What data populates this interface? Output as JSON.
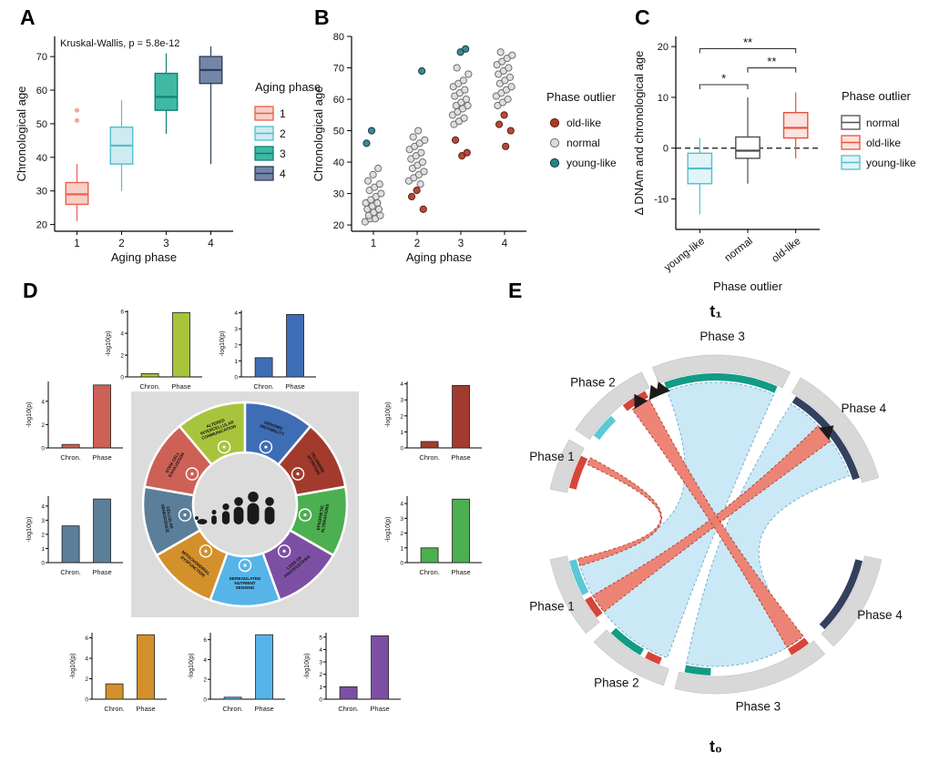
{
  "panels": {
    "A": "A",
    "B": "B",
    "C": "C",
    "D": "D",
    "E": "E"
  },
  "chart_data": [
    {
      "id": "chartA",
      "type": "box",
      "title": "Kruskal-Wallis, p = 5.8e-12",
      "xlabel": "Aging phase",
      "ylabel": "Chronological age",
      "ylim": [
        18,
        76
      ],
      "yticks": [
        20,
        30,
        40,
        50,
        60,
        70
      ],
      "legend": {
        "title": "Aging phase",
        "entries": [
          {
            "label": "1",
            "stroke": "#E8604C",
            "fill": "#F9CEC6"
          },
          {
            "label": "2",
            "stroke": "#52BECC",
            "fill": "#CDEBF0"
          },
          {
            "label": "3",
            "stroke": "#0F8174",
            "fill": "#3FB8A4"
          },
          {
            "label": "4",
            "stroke": "#2F3E5C",
            "fill": "#7486A8"
          }
        ]
      },
      "boxes": [
        {
          "label": "1",
          "stroke": "#E8604C",
          "fill": "#F9CEC6",
          "low": 21,
          "q1": 26,
          "median": 29,
          "q3": 32.5,
          "high": 38,
          "outliers": [
            51,
            54
          ]
        },
        {
          "label": "2",
          "stroke": "#52BECC",
          "fill": "#CDEBF0",
          "low": 30,
          "q1": 38,
          "median": 43.5,
          "q3": 49,
          "high": 57,
          "outliers": []
        },
        {
          "label": "3",
          "stroke": "#0F8174",
          "fill": "#3FB8A4",
          "low": 47,
          "q1": 54,
          "median": 58,
          "q3": 65,
          "high": 71,
          "outliers": []
        },
        {
          "label": "4",
          "stroke": "#2F3E5C",
          "fill": "#7486A8",
          "low": 38,
          "q1": 62,
          "median": 66,
          "q3": 70,
          "high": 73,
          "outliers": []
        }
      ]
    },
    {
      "id": "chartB",
      "type": "scatter",
      "xlabel": "Aging phase",
      "ylabel": "Chronological age",
      "ylim": [
        18,
        80
      ],
      "yticks": [
        20,
        30,
        40,
        50,
        60,
        70,
        80
      ],
      "categories": [
        "1",
        "2",
        "3",
        "4"
      ],
      "classes": {
        "old-like": {
          "fill": "#AE3B2A",
          "stroke": "#5F1F14"
        },
        "normal": {
          "fill": "#DCDCDC",
          "stroke": "#6E6E6E"
        },
        "young-like": {
          "fill": "#2B7F8C",
          "stroke": "#123F47"
        }
      },
      "legend": {
        "title": "Phase outlier",
        "entries": [
          "old-like",
          "normal",
          "young-like"
        ]
      },
      "points": [
        [
          1,
          21,
          "normal"
        ],
        [
          1,
          22,
          "normal"
        ],
        [
          1,
          22,
          "normal"
        ],
        [
          1,
          23,
          "normal"
        ],
        [
          1,
          23,
          "normal"
        ],
        [
          1,
          24,
          "normal"
        ],
        [
          1,
          25,
          "normal"
        ],
        [
          1,
          25,
          "normal"
        ],
        [
          1,
          26,
          "normal"
        ],
        [
          1,
          27,
          "normal"
        ],
        [
          1,
          27,
          "normal"
        ],
        [
          1,
          28,
          "normal"
        ],
        [
          1,
          29,
          "normal"
        ],
        [
          1,
          30,
          "normal"
        ],
        [
          1,
          31,
          "normal"
        ],
        [
          1,
          32,
          "normal"
        ],
        [
          1,
          33,
          "normal"
        ],
        [
          1,
          34,
          "normal"
        ],
        [
          1,
          36,
          "normal"
        ],
        [
          1,
          38,
          "normal"
        ],
        [
          1,
          46,
          "young-like"
        ],
        [
          1,
          50,
          "young-like"
        ],
        [
          2,
          33,
          "normal"
        ],
        [
          2,
          34,
          "normal"
        ],
        [
          2,
          35,
          "normal"
        ],
        [
          2,
          36,
          "normal"
        ],
        [
          2,
          37,
          "normal"
        ],
        [
          2,
          38,
          "normal"
        ],
        [
          2,
          39,
          "normal"
        ],
        [
          2,
          40,
          "normal"
        ],
        [
          2,
          41,
          "normal"
        ],
        [
          2,
          42,
          "normal"
        ],
        [
          2,
          43,
          "normal"
        ],
        [
          2,
          44,
          "normal"
        ],
        [
          2,
          45,
          "normal"
        ],
        [
          2,
          46,
          "normal"
        ],
        [
          2,
          47,
          "normal"
        ],
        [
          2,
          48,
          "normal"
        ],
        [
          2,
          50,
          "normal"
        ],
        [
          2,
          25,
          "old-like"
        ],
        [
          2,
          29,
          "old-like"
        ],
        [
          2,
          31,
          "old-like"
        ],
        [
          2,
          69,
          "young-like"
        ],
        [
          3,
          52,
          "normal"
        ],
        [
          3,
          53,
          "normal"
        ],
        [
          3,
          54,
          "normal"
        ],
        [
          3,
          55,
          "normal"
        ],
        [
          3,
          56,
          "normal"
        ],
        [
          3,
          57,
          "normal"
        ],
        [
          3,
          58,
          "normal"
        ],
        [
          3,
          58,
          "normal"
        ],
        [
          3,
          59,
          "normal"
        ],
        [
          3,
          60,
          "normal"
        ],
        [
          3,
          61,
          "normal"
        ],
        [
          3,
          62,
          "normal"
        ],
        [
          3,
          63,
          "normal"
        ],
        [
          3,
          64,
          "normal"
        ],
        [
          3,
          65,
          "normal"
        ],
        [
          3,
          66,
          "normal"
        ],
        [
          3,
          68,
          "normal"
        ],
        [
          3,
          70,
          "normal"
        ],
        [
          3,
          42,
          "old-like"
        ],
        [
          3,
          43,
          "old-like"
        ],
        [
          3,
          47,
          "old-like"
        ],
        [
          3,
          75,
          "young-like"
        ],
        [
          3,
          76,
          "young-like"
        ],
        [
          4,
          58,
          "normal"
        ],
        [
          4,
          59,
          "normal"
        ],
        [
          4,
          60,
          "normal"
        ],
        [
          4,
          61,
          "normal"
        ],
        [
          4,
          62,
          "normal"
        ],
        [
          4,
          63,
          "normal"
        ],
        [
          4,
          64,
          "normal"
        ],
        [
          4,
          65,
          "normal"
        ],
        [
          4,
          66,
          "normal"
        ],
        [
          4,
          67,
          "normal"
        ],
        [
          4,
          68,
          "normal"
        ],
        [
          4,
          69,
          "normal"
        ],
        [
          4,
          70,
          "normal"
        ],
        [
          4,
          71,
          "normal"
        ],
        [
          4,
          72,
          "normal"
        ],
        [
          4,
          73,
          "normal"
        ],
        [
          4,
          74,
          "normal"
        ],
        [
          4,
          75,
          "normal"
        ],
        [
          4,
          45,
          "old-like"
        ],
        [
          4,
          50,
          "old-like"
        ],
        [
          4,
          52,
          "old-like"
        ],
        [
          4,
          55,
          "old-like"
        ]
      ]
    },
    {
      "id": "chartC",
      "type": "box",
      "ml": 50,
      "xlabel": "Phase outlier",
      "ylabel": "Δ DNAm and chronological age",
      "ylim": [
        -16,
        22
      ],
      "yticks": [
        -10,
        0,
        10,
        20
      ],
      "zero_line": true,
      "rotate_x": true,
      "legend": {
        "title": "Phase outlier",
        "entries": [
          {
            "label": "normal",
            "stroke": "#4D4D4D",
            "fill": "#FFFFFF"
          },
          {
            "label": "old-like",
            "stroke": "#E8503A",
            "fill": "#FBE3DF"
          },
          {
            "label": "young-like",
            "stroke": "#52BECC",
            "fill": "#E2F4F7"
          }
        ]
      },
      "boxes": [
        {
          "label": "young-like",
          "stroke": "#52BECC",
          "fill": "#E2F4F7",
          "low": -13,
          "q1": -7,
          "median": -4,
          "q3": -1,
          "high": 2,
          "outliers": []
        },
        {
          "label": "normal",
          "stroke": "#4D4D4D",
          "fill": "#FFFFFF",
          "low": -7,
          "q1": -2,
          "median": -0.5,
          "q3": 2.2,
          "high": 10,
          "outliers": []
        },
        {
          "label": "old-like",
          "stroke": "#E8503A",
          "fill": "#FBE3DF",
          "low": -2,
          "q1": 2,
          "median": 4,
          "q3": 7,
          "high": 11,
          "outliers": []
        }
      ],
      "brackets": [
        {
          "from": 0,
          "to": 1,
          "label": "*",
          "y": 12.5
        },
        {
          "from": 1,
          "to": 2,
          "label": "**",
          "y": 15.8
        },
        {
          "from": 0,
          "to": 2,
          "label": "**",
          "y": 19.6
        }
      ]
    },
    {
      "id": "panelD",
      "type": "bar-multiples",
      "ylabel": "-log10(p)",
      "categories": [
        "Chron.",
        "Phase"
      ],
      "charts": [
        {
          "slot": "d-top-left",
          "hallmark": "Altered intercellular communication",
          "color": "#A8C43C",
          "values": [
            0.3,
            5.9
          ],
          "ymax": 6.1,
          "yticks": [
            0,
            2,
            4,
            6
          ]
        },
        {
          "slot": "d-top-right",
          "hallmark": "Genomic instability",
          "color": "#3E6DB5",
          "values": [
            1.2,
            3.9
          ],
          "ymax": 4.15,
          "yticks": [
            0,
            1,
            2,
            3,
            4
          ]
        },
        {
          "slot": "d-right-top",
          "hallmark": "Telomere attrition",
          "color": "#A23B2E",
          "values": [
            0.4,
            3.9
          ],
          "ymax": 4.15,
          "yticks": [
            0,
            1,
            2,
            3,
            4
          ]
        },
        {
          "slot": "d-right-bottom",
          "hallmark": "Epigenetic alterations",
          "color": "#4CAF50",
          "values": [
            1.0,
            4.3
          ],
          "ymax": 4.5,
          "yticks": [
            0,
            1,
            2,
            3,
            4
          ]
        },
        {
          "slot": "d-left-top",
          "hallmark": "Stem cell exhaustion",
          "color": "#CD6155",
          "values": [
            0.3,
            5.4
          ],
          "ymax": 5.7,
          "yticks": [
            0,
            2,
            4
          ]
        },
        {
          "slot": "d-left-bottom",
          "hallmark": "Cellular senescence",
          "color": "#5B7E99",
          "values": [
            2.6,
            4.5
          ],
          "ymax": 4.7,
          "yticks": [
            0,
            1,
            2,
            3,
            4
          ]
        },
        {
          "slot": "d-bottom-left",
          "hallmark": "Mitochondrial dysfunction",
          "color": "#D4902A",
          "values": [
            1.5,
            6.3
          ],
          "ymax": 6.5,
          "yticks": [
            0,
            2,
            4,
            6
          ]
        },
        {
          "slot": "d-bottom-middle",
          "hallmark": "Deregulated nutrient sensing",
          "color": "#56B4E9",
          "values": [
            0.2,
            6.5
          ],
          "ymax": 6.7,
          "yticks": [
            0,
            2,
            4,
            6
          ]
        },
        {
          "slot": "d-bottom-right",
          "hallmark": "Loss of proteostasis",
          "color": "#7D4FA3",
          "values": [
            1.0,
            5.1
          ],
          "ymax": 5.35,
          "yticks": [
            0,
            1,
            2,
            3,
            4,
            5
          ]
        }
      ],
      "wheel": {
        "segments": [
          {
            "label": "Altered intercellular communication",
            "color": "#A8C43C"
          },
          {
            "label": "Genomic instability",
            "color": "#3E6DB5"
          },
          {
            "label": "Telomere attrition",
            "color": "#A23B2E"
          },
          {
            "label": "Epigenetic alterations",
            "color": "#4CAF50"
          },
          {
            "label": "Loss of proteostasis",
            "color": "#7D4FA3"
          },
          {
            "label": "Deregulated nutrient sensing",
            "color": "#56B4E9"
          },
          {
            "label": "Mitochondrial dysfunction",
            "color": "#D4902A"
          },
          {
            "label": "Cellular senescence",
            "color": "#5B7E99"
          },
          {
            "label": "Stem cell exhaustion",
            "color": "#CD6155"
          }
        ]
      }
    },
    {
      "id": "chartE",
      "type": "chord",
      "top_label": "t₁",
      "bottom_label": "t₀",
      "colors": {
        "grey": "#D8D8D8",
        "cyan": "#5BC8D6",
        "teal": "#129B85",
        "red": "#D6453A",
        "navy": "#33415E"
      },
      "ribbon_colors": {
        "blue": {
          "fill": "#C5E6F5",
          "stroke": "#69A9CC"
        },
        "red": {
          "fill": "#ED7D6E",
          "stroke": "#B03A2E"
        }
      },
      "top_arc": {
        "phases": [
          {
            "label": "Phase 1",
            "a0": 168,
            "a1": 150,
            "strips": [
              {
                "color": "red",
                "a0": 166,
                "a1": 153
              }
            ]
          },
          {
            "label": "Phase 2",
            "a0": 146,
            "a1": 116,
            "strips": [
              {
                "color": "cyan",
                "a0": 144,
                "a1": 134
              },
              {
                "color": "red",
                "a0": 128,
                "a1": 118
              }
            ]
          },
          {
            "label": "Phase 3",
            "a0": 112,
            "a1": 64,
            "strips": [
              {
                "color": "teal",
                "a0": 110,
                "a1": 66
              }
            ]
          },
          {
            "label": "Phase 4",
            "a0": 60,
            "a1": 16,
            "strips": [
              {
                "color": "navy",
                "a0": 58,
                "a1": 18
              }
            ]
          }
        ]
      },
      "bottom_arc": {
        "phases": [
          {
            "label": "Phase 1",
            "a0": 192,
            "a1": 220,
            "strips": [
              {
                "color": "cyan",
                "a0": 194,
                "a1": 208
              },
              {
                "color": "red",
                "a0": 210,
                "a1": 218
              }
            ]
          },
          {
            "label": "Phase 2",
            "a0": 224,
            "a1": 252,
            "strips": [
              {
                "color": "teal",
                "a0": 226,
                "a1": 240
              },
              {
                "color": "red",
                "a0": 242,
                "a1": 248
              }
            ]
          },
          {
            "label": "Phase 3",
            "a0": 256,
            "a1": 310,
            "strips": [
              {
                "color": "teal",
                "a0": 258,
                "a1": 268
              },
              {
                "color": "red",
                "a0": 300,
                "a1": 308
              }
            ]
          },
          {
            "label": "Phase 4",
            "a0": 314,
            "a1": 348,
            "strips": [
              {
                "color": "navy",
                "a0": 316,
                "a1": 346
              }
            ]
          }
        ]
      },
      "ribbons": [
        {
          "color": "blue",
          "bottom": [
            196,
            250
          ],
          "top": [
            66,
            110
          ]
        },
        {
          "color": "blue",
          "bottom": [
            258,
            306
          ],
          "top": [
            20,
            58
          ]
        },
        {
          "color": "red",
          "bottom": [
            210,
            218
          ],
          "top": [
            36,
            44
          ]
        },
        {
          "color": "red",
          "bottom": [
            300,
            308
          ],
          "top": [
            118,
            126
          ]
        },
        {
          "color": "red",
          "bottom": [
            194,
            197
          ],
          "top": [
            152,
            155
          ]
        }
      ],
      "arrows": [
        40,
        112,
        115,
        122
      ]
    }
  ]
}
